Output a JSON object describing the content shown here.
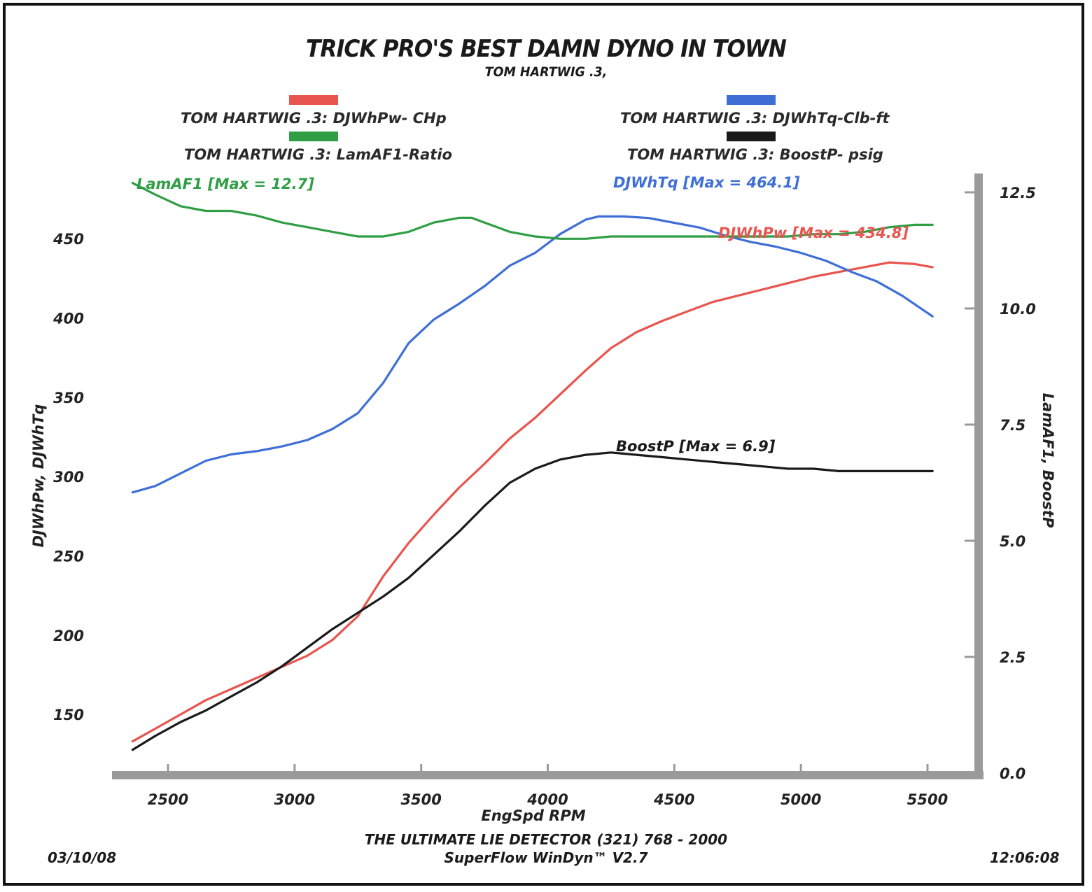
{
  "header": {
    "title": "TRICK PRO'S BEST DAMN DYNO IN TOWN",
    "subtitle": "TOM HARTWIG .3,"
  },
  "legend": [
    {
      "label": "TOM HARTWIG .3: DJWhPw- CHp",
      "color": "#e8554f"
    },
    {
      "label": "TOM HARTWIG .3: DJWhTq-Clb-ft",
      "color": "#3f6fd6"
    },
    {
      "label": "TOM HARTWIG .3: LamAF1-Ratio",
      "color": "#2f9e44"
    },
    {
      "label": "TOM HARTWIG .3: BoostP- psig",
      "color": "#1a1a1a"
    }
  ],
  "footer": {
    "date": "03/10/08",
    "time": "12:06:08",
    "line1": "THE ULTIMATE LIE DETECTOR (321) 768 - 2000",
    "line2": "SuperFlow WinDyn™ V2.7"
  },
  "chart_data": {
    "type": "line",
    "xlabel": "EngSpd  RPM",
    "ylabel_left": "DJWhPw, DJWhTq",
    "ylabel_right": "LamAF1, BoostP",
    "xlim": [
      2250,
      5700
    ],
    "ylim_left": [
      113,
      488
    ],
    "ylim_right": [
      0,
      12.8
    ],
    "x_ticks": [
      2500,
      3000,
      3500,
      4000,
      4500,
      5000,
      5500
    ],
    "y_ticks_left": [
      150,
      200,
      250,
      300,
      350,
      400,
      450
    ],
    "y_ticks_right": [
      "0.0",
      "2.5",
      "5.0",
      "7.5",
      "10.0",
      "12.5"
    ],
    "grid": false,
    "legend_position": "top",
    "annotations": {
      "lamaf1": "LamAF1 [Max = 12.7]",
      "djwhtq": "DJWhTq [Max = 464.1]",
      "djwhpw": "DJWhPw [Max = 434.8]",
      "boostp": "BoostP [Max = 6.9]"
    },
    "series": [
      {
        "name": "DJWhPw",
        "axis": "left",
        "color": "#e8554f",
        "x": [
          2360,
          2450,
          2550,
          2650,
          2750,
          2850,
          2950,
          3050,
          3150,
          3250,
          3350,
          3450,
          3550,
          3650,
          3750,
          3850,
          3950,
          4050,
          4150,
          4250,
          4350,
          4450,
          4550,
          4650,
          4750,
          4850,
          4950,
          5050,
          5150,
          5250,
          5350,
          5450,
          5520
        ],
        "y": [
          133,
          141,
          150,
          159,
          166,
          173,
          180,
          187,
          197,
          212,
          237,
          258,
          276,
          293,
          308,
          324,
          337,
          352,
          367,
          381,
          391,
          398,
          404,
          410,
          414,
          418,
          422,
          426,
          429,
          432,
          435,
          434,
          432
        ]
      },
      {
        "name": "DJWhTq",
        "axis": "left",
        "color": "#3f6fd6",
        "x": [
          2360,
          2450,
          2550,
          2650,
          2750,
          2850,
          2950,
          3050,
          3150,
          3250,
          3350,
          3450,
          3550,
          3650,
          3750,
          3850,
          3950,
          4050,
          4150,
          4200,
          4300,
          4400,
          4500,
          4600,
          4700,
          4800,
          4900,
          5000,
          5100,
          5200,
          5300,
          5400,
          5520
        ],
        "y": [
          290,
          294,
          302,
          310,
          314,
          316,
          319,
          323,
          330,
          340,
          359,
          384,
          399,
          409,
          420,
          433,
          441,
          453,
          462,
          464,
          464,
          463,
          460,
          457,
          452,
          448,
          445,
          441,
          436,
          429,
          423,
          414,
          401
        ]
      },
      {
        "name": "LamAF1",
        "axis": "right",
        "color": "#2f9e44",
        "x": [
          2360,
          2450,
          2550,
          2650,
          2750,
          2850,
          2950,
          3050,
          3150,
          3250,
          3350,
          3450,
          3550,
          3650,
          3700,
          3750,
          3850,
          3950,
          4050,
          4150,
          4250,
          4350,
          4450,
          4550,
          4650,
          4750,
          4850,
          4950,
          5050,
          5150,
          5250,
          5350,
          5450,
          5520
        ],
        "y": [
          12.7,
          12.45,
          12.2,
          12.1,
          12.1,
          12.0,
          11.85,
          11.75,
          11.65,
          11.55,
          11.55,
          11.65,
          11.85,
          11.95,
          11.95,
          11.85,
          11.65,
          11.55,
          11.5,
          11.5,
          11.55,
          11.55,
          11.55,
          11.55,
          11.55,
          11.55,
          11.55,
          11.55,
          11.6,
          11.6,
          11.65,
          11.75,
          11.8,
          11.8
        ]
      },
      {
        "name": "BoostP",
        "axis": "right",
        "color": "#1a1a1a",
        "x": [
          2360,
          2450,
          2550,
          2650,
          2750,
          2850,
          2950,
          3050,
          3150,
          3250,
          3350,
          3450,
          3550,
          3650,
          3750,
          3850,
          3950,
          4050,
          4150,
          4250,
          4350,
          4450,
          4550,
          4650,
          4750,
          4850,
          4950,
          5050,
          5150,
          5250,
          5350,
          5450,
          5520
        ],
        "y": [
          0.5,
          0.8,
          1.1,
          1.35,
          1.65,
          1.95,
          2.3,
          2.7,
          3.1,
          3.45,
          3.8,
          4.2,
          4.7,
          5.2,
          5.75,
          6.25,
          6.55,
          6.75,
          6.85,
          6.9,
          6.85,
          6.8,
          6.75,
          6.7,
          6.65,
          6.6,
          6.55,
          6.55,
          6.5,
          6.5,
          6.5,
          6.5,
          6.5
        ]
      }
    ]
  }
}
